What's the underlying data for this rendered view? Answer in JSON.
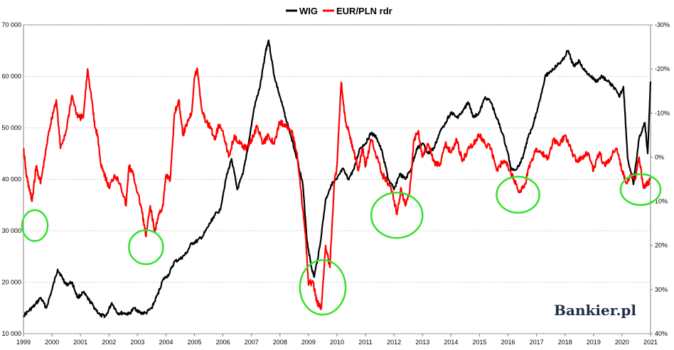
{
  "chart_data": {
    "type": "line",
    "title": "",
    "legend_position": "top-center",
    "grid": true,
    "x_ticks": [
      "1999",
      "2000",
      "2001",
      "2002",
      "2003",
      "2004",
      "2005",
      "2006",
      "2007",
      "2008",
      "2009",
      "2010",
      "2011",
      "2012",
      "2013",
      "2014",
      "2015",
      "2016",
      "2017",
      "2018",
      "2019",
      "2020",
      "2021"
    ],
    "y_left": {
      "ylim": [
        10000,
        70000
      ],
      "ticks": [
        "10 000",
        "20 000",
        "30 000",
        "40 000",
        "50 000",
        "60 000",
        "70 000"
      ],
      "tick_values": [
        10000,
        20000,
        30000,
        40000,
        50000,
        60000,
        70000
      ]
    },
    "y_right": {
      "ylim": [
        -0.3,
        0.4
      ],
      "inverted": true,
      "ticks": [
        "-30%",
        "-20%",
        "-10%",
        "0%",
        "10%",
        "20%",
        "30%",
        "40%"
      ],
      "tick_values": [
        -0.3,
        -0.2,
        -0.1,
        0.0,
        0.1,
        0.2,
        0.3,
        0.4
      ]
    },
    "series": [
      {
        "name": "WIG",
        "axis": "left",
        "color": "#000000",
        "x": [
          1999.0,
          1999.2,
          1999.4,
          1999.6,
          1999.8,
          2000.0,
          2000.2,
          2000.35,
          2000.5,
          2000.7,
          2000.9,
          2001.1,
          2001.3,
          2001.5,
          2001.7,
          2001.9,
          2002.1,
          2002.3,
          2002.5,
          2002.7,
          2002.9,
          2003.1,
          2003.3,
          2003.5,
          2003.7,
          2003.9,
          2004.1,
          2004.3,
          2004.5,
          2004.7,
          2004.9,
          2005.1,
          2005.3,
          2005.5,
          2005.7,
          2005.9,
          2006.1,
          2006.3,
          2006.5,
          2006.7,
          2006.9,
          2007.1,
          2007.3,
          2007.5,
          2007.6,
          2007.8,
          2008.0,
          2008.2,
          2008.4,
          2008.6,
          2008.8,
          2008.95,
          2009.1,
          2009.2,
          2009.4,
          2009.6,
          2009.8,
          2010.0,
          2010.2,
          2010.4,
          2010.6,
          2010.8,
          2011.0,
          2011.2,
          2011.4,
          2011.6,
          2011.8,
          2012.0,
          2012.2,
          2012.4,
          2012.6,
          2012.8,
          2013.0,
          2013.2,
          2013.4,
          2013.6,
          2013.8,
          2014.0,
          2014.2,
          2014.4,
          2014.6,
          2014.8,
          2015.0,
          2015.2,
          2015.4,
          2015.6,
          2015.8,
          2016.0,
          2016.1,
          2016.3,
          2016.5,
          2016.7,
          2016.9,
          2017.1,
          2017.3,
          2017.5,
          2017.7,
          2017.9,
          2018.1,
          2018.3,
          2018.5,
          2018.7,
          2018.9,
          2019.1,
          2019.3,
          2019.5,
          2019.7,
          2019.9,
          2020.05,
          2020.2,
          2020.4,
          2020.6,
          2020.8,
          2020.9,
          2021.0
        ],
        "values": [
          13500,
          14500,
          15500,
          17000,
          15000,
          18500,
          22500,
          21000,
          19500,
          20000,
          17000,
          18000,
          16500,
          15000,
          13500,
          13500,
          16000,
          14000,
          14000,
          13800,
          15000,
          14000,
          14000,
          15000,
          17500,
          20500,
          21500,
          24000,
          24500,
          25500,
          27500,
          28000,
          29000,
          31000,
          33000,
          34000,
          40000,
          44000,
          38000,
          41000,
          47000,
          54000,
          58000,
          65000,
          67000,
          60000,
          56000,
          52000,
          48000,
          44000,
          39000,
          28000,
          23000,
          21000,
          27000,
          36000,
          39000,
          40000,
          42000,
          40000,
          42000,
          46000,
          47000,
          49000,
          48000,
          45000,
          40000,
          38000,
          41000,
          40000,
          42000,
          46000,
          47000,
          45000,
          46000,
          49000,
          51000,
          53000,
          52000,
          53000,
          55000,
          52000,
          53000,
          56000,
          55000,
          52000,
          49000,
          45000,
          42000,
          42000,
          44000,
          48000,
          51000,
          55000,
          60000,
          61000,
          62000,
          63000,
          65000,
          62000,
          63000,
          61000,
          60000,
          59000,
          60000,
          59000,
          58000,
          56000,
          58000,
          44000,
          39000,
          48000,
          51000,
          45000,
          59000
        ]
      },
      {
        "name": "EUR/PLN rdr",
        "axis": "right",
        "color": "#ff0000",
        "x": [
          1999.0,
          1999.1,
          1999.2,
          1999.3,
          1999.45,
          1999.6,
          1999.75,
          1999.9,
          2000.0,
          2000.15,
          2000.3,
          2000.5,
          2000.7,
          2000.9,
          2001.1,
          2001.25,
          2001.4,
          2001.5,
          2001.6,
          2001.7,
          2001.85,
          2002.0,
          2002.2,
          2002.4,
          2002.6,
          2002.7,
          2002.85,
          2003.0,
          2003.15,
          2003.3,
          2003.45,
          2003.6,
          2003.75,
          2003.9,
          2004.0,
          2004.15,
          2004.3,
          2004.45,
          2004.6,
          2004.75,
          2004.9,
          2005.0,
          2005.1,
          2005.25,
          2005.4,
          2005.55,
          2005.7,
          2005.85,
          2006.0,
          2006.2,
          2006.4,
          2006.6,
          2006.8,
          2007.0,
          2007.2,
          2007.4,
          2007.6,
          2007.8,
          2008.0,
          2008.2,
          2008.4,
          2008.6,
          2008.8,
          2008.9,
          2009.0,
          2009.15,
          2009.3,
          2009.45,
          2009.6,
          2009.75,
          2009.9,
          2010.0,
          2010.15,
          2010.3,
          2010.45,
          2010.6,
          2010.75,
          2010.9,
          2011.0,
          2011.2,
          2011.4,
          2011.6,
          2011.8,
          2011.95,
          2012.1,
          2012.25,
          2012.4,
          2012.55,
          2012.7,
          2012.85,
          2013.0,
          2013.2,
          2013.4,
          2013.6,
          2013.8,
          2014.0,
          2014.2,
          2014.4,
          2014.6,
          2014.8,
          2015.0,
          2015.2,
          2015.4,
          2015.6,
          2015.8,
          2016.0,
          2016.2,
          2016.4,
          2016.6,
          2016.8,
          2017.0,
          2017.2,
          2017.4,
          2017.6,
          2017.8,
          2018.0,
          2018.2,
          2018.4,
          2018.6,
          2018.8,
          2019.0,
          2019.2,
          2019.4,
          2019.6,
          2019.8,
          2020.0,
          2020.15,
          2020.3,
          2020.45,
          2020.6,
          2020.75,
          2020.9,
          2021.0
        ],
        "values": [
          -0.02,
          0.04,
          0.07,
          0.1,
          0.02,
          0.06,
          0.0,
          -0.06,
          -0.09,
          -0.13,
          -0.02,
          -0.06,
          -0.14,
          -0.09,
          -0.09,
          -0.2,
          -0.13,
          -0.07,
          -0.05,
          0.01,
          0.04,
          0.07,
          0.04,
          0.06,
          0.11,
          0.02,
          0.04,
          0.08,
          0.12,
          0.18,
          0.11,
          0.17,
          0.13,
          0.11,
          0.04,
          0.05,
          -0.1,
          -0.13,
          -0.05,
          -0.08,
          -0.1,
          -0.18,
          -0.2,
          -0.11,
          -0.08,
          -0.07,
          -0.04,
          -0.07,
          -0.06,
          0.0,
          -0.05,
          -0.03,
          -0.02,
          -0.04,
          -0.07,
          -0.03,
          -0.05,
          -0.03,
          -0.08,
          -0.07,
          -0.06,
          -0.01,
          0.12,
          0.18,
          0.29,
          0.28,
          0.33,
          0.34,
          0.2,
          0.25,
          0.06,
          0.02,
          -0.17,
          -0.08,
          -0.05,
          -0.01,
          0.03,
          -0.02,
          0.02,
          -0.04,
          0.0,
          0.04,
          0.06,
          0.08,
          0.13,
          0.07,
          0.11,
          0.08,
          -0.04,
          -0.06,
          0.0,
          -0.03,
          0.01,
          0.02,
          -0.03,
          -0.01,
          -0.04,
          0.01,
          -0.02,
          -0.03,
          -0.05,
          -0.03,
          -0.02,
          0.03,
          0.01,
          0.02,
          0.05,
          0.08,
          0.06,
          0.01,
          -0.02,
          -0.01,
          0.0,
          -0.04,
          -0.03,
          -0.05,
          -0.02,
          0.01,
          0.0,
          -0.01,
          0.03,
          -0.01,
          0.02,
          0.0,
          -0.02,
          0.03,
          0.06,
          0.04,
          0.05,
          0.0,
          0.07,
          0.06,
          0.05
        ]
      }
    ],
    "annotations": [
      {
        "type": "circle",
        "color": "#33e12e",
        "cx": 1999.4,
        "cy_left": 31000,
        "rx": 0.45,
        "ry_left": 3000
      },
      {
        "type": "circle",
        "color": "#33e12e",
        "cx": 2003.3,
        "cy_left": 26800,
        "rx": 0.6,
        "ry_left": 3300
      },
      {
        "type": "circle",
        "color": "#33e12e",
        "cx": 2009.5,
        "cy_left": 19000,
        "rx": 0.8,
        "ry_left": 5300
      },
      {
        "type": "circle",
        "color": "#33e12e",
        "cx": 2012.1,
        "cy_left": 33000,
        "rx": 0.9,
        "ry_left": 4400
      },
      {
        "type": "circle",
        "color": "#33e12e",
        "cx": 2016.35,
        "cy_left": 37000,
        "rx": 0.75,
        "ry_left": 3500
      },
      {
        "type": "circle",
        "color": "#33e12e",
        "cx": 2020.65,
        "cy_left": 38000,
        "rx": 0.7,
        "ry_left": 3000
      }
    ]
  },
  "watermark": {
    "text": "Bankier.pl"
  }
}
